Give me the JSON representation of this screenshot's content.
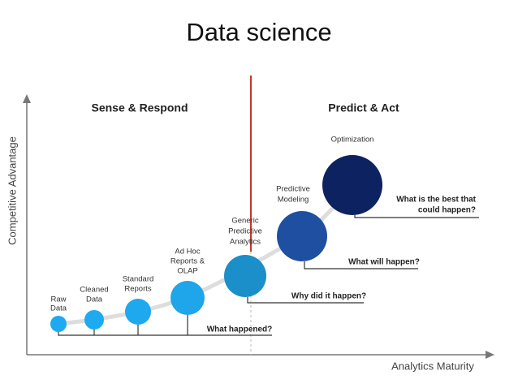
{
  "title": "Data science",
  "y_axis_label": "Competitive Advantage",
  "x_axis_label": "Analytics Maturity",
  "sections": [
    "Sense & Respond",
    "Predict & Act"
  ],
  "nodes": [
    {
      "label": [
        "Raw",
        "Data"
      ]
    },
    {
      "label": [
        "Cleaned",
        "Data"
      ]
    },
    {
      "label": [
        "Standard",
        "Reports"
      ]
    },
    {
      "label": [
        "Ad Hoc",
        "Reports &",
        "OLAP"
      ]
    },
    {
      "label": [
        "Generic",
        "Predictive",
        "Analytics"
      ]
    },
    {
      "label": [
        "Predictive",
        "Modeling"
      ]
    },
    {
      "label": [
        "Optimization"
      ]
    }
  ],
  "questions": [
    [
      "What happened?"
    ],
    [
      "Why did it happen?"
    ],
    [
      "What will happen?"
    ],
    [
      "What is the best that",
      "could happen?"
    ]
  ]
}
